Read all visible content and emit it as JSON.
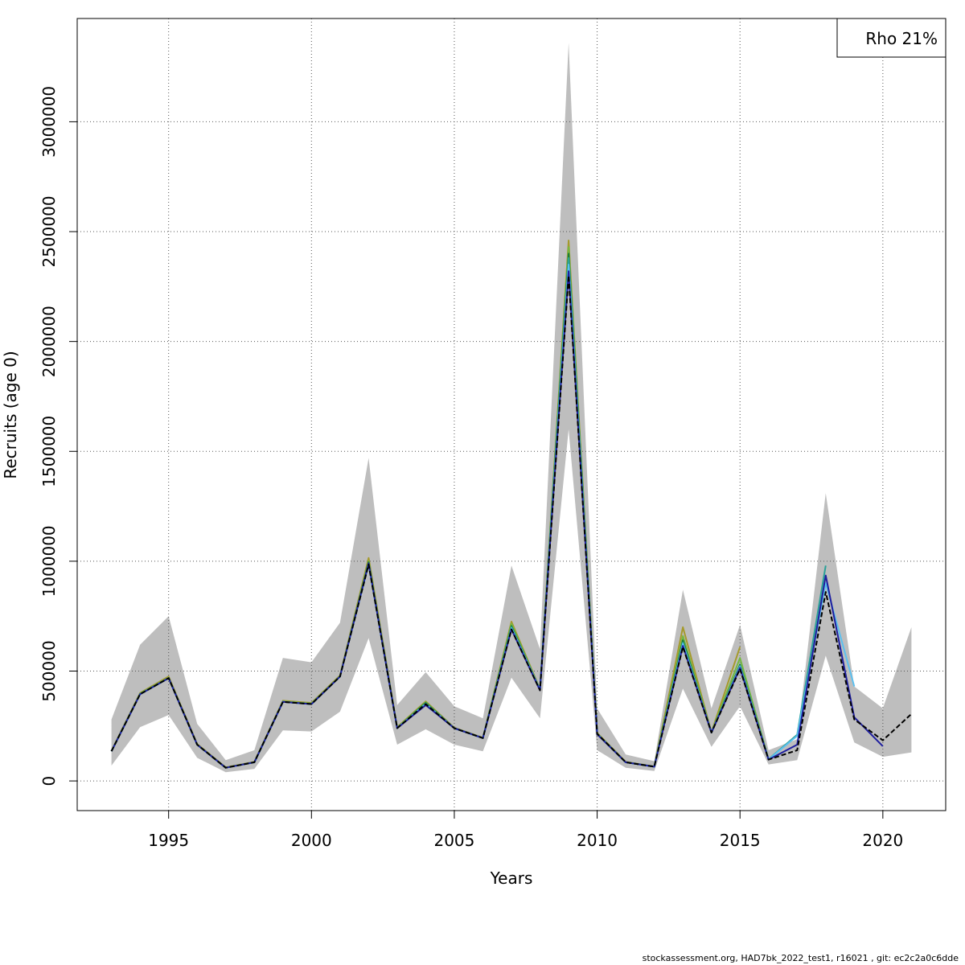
{
  "chart_data": {
    "type": "line",
    "title": "",
    "xlabel": "Years",
    "ylabel": "Recruits (age 0)",
    "xlim": [
      1991.8,
      2022.2
    ],
    "ylim": [
      -135000,
      3470000
    ],
    "x_ticks": [
      1995,
      2000,
      2005,
      2010,
      2015,
      2020
    ],
    "y_ticks": [
      0,
      500000,
      1000000,
      1500000,
      2000000,
      2500000,
      3000000
    ],
    "grid": true,
    "legend": {
      "placement": "top-right",
      "text": "Rho 21%"
    },
    "band": {
      "x": [
        1993,
        1994,
        1995,
        1996,
        1997,
        1998,
        1999,
        2000,
        2001,
        2002,
        2003,
        2004,
        2005,
        2006,
        2007,
        2008,
        2009,
        2010,
        2011,
        2012,
        2013,
        2014,
        2015,
        2016,
        2017,
        2018,
        2019,
        2020,
        2021
      ],
      "lower": [
        70000,
        245000,
        300000,
        105000,
        40000,
        55000,
        230000,
        225000,
        315000,
        650000,
        165000,
        235000,
        165000,
        135000,
        470000,
        285000,
        1600000,
        140000,
        60000,
        45000,
        420000,
        155000,
        340000,
        75000,
        95000,
        570000,
        175000,
        110000,
        130000
      ],
      "upper": [
        280000,
        620000,
        750000,
        260000,
        95000,
        140000,
        560000,
        540000,
        720000,
        1470000,
        345000,
        495000,
        340000,
        285000,
        980000,
        600000,
        3360000,
        330000,
        120000,
        90000,
        870000,
        330000,
        710000,
        140000,
        190000,
        1310000,
        430000,
        330000,
        700000
      ]
    },
    "series": [
      {
        "color": "#000000",
        "dashed": true,
        "x": [
          1993,
          1994,
          1995,
          1996,
          1997,
          1998,
          1999,
          2000,
          2001,
          2002,
          2003,
          2004,
          2005,
          2006,
          2007,
          2008,
          2009,
          2010,
          2011,
          2012,
          2013,
          2014,
          2015,
          2016,
          2017,
          2018,
          2019,
          2020,
          2021
        ],
        "values": [
          135000,
          395000,
          468000,
          165000,
          60000,
          85000,
          360000,
          350000,
          475000,
          985000,
          240000,
          350000,
          240000,
          195000,
          690000,
          412000,
          2300000,
          215000,
          85000,
          65000,
          610000,
          220000,
          510000,
          97000,
          140000,
          860000,
          280000,
          185000,
          305000
        ]
      },
      {
        "color": "#1f1f9f",
        "dashed": false,
        "x": [
          1993,
          1994,
          1995,
          1996,
          1997,
          1998,
          1999,
          2000,
          2001,
          2002,
          2003,
          2004,
          2005,
          2006,
          2007,
          2008,
          2009,
          2010,
          2011,
          2012,
          2013,
          2014,
          2015,
          2016,
          2017,
          2018,
          2019,
          2020
        ],
        "values": [
          135000,
          395000,
          468000,
          165000,
          60000,
          85000,
          360000,
          350000,
          475000,
          990000,
          240000,
          345000,
          240000,
          195000,
          690000,
          412000,
          2320000,
          212000,
          85000,
          65000,
          615000,
          220000,
          515000,
          97000,
          165000,
          935000,
          290000,
          158000
        ]
      },
      {
        "color": "#5bc0f0",
        "dashed": false,
        "x": [
          1993,
          1994,
          1995,
          1996,
          1997,
          1998,
          1999,
          2000,
          2001,
          2002,
          2003,
          2004,
          2005,
          2006,
          2007,
          2008,
          2009,
          2010,
          2011,
          2012,
          2013,
          2014,
          2015,
          2016,
          2017,
          2018,
          2019
        ],
        "values": [
          135000,
          395000,
          468000,
          165000,
          60000,
          85000,
          360000,
          350000,
          475000,
          985000,
          240000,
          350000,
          240000,
          195000,
          695000,
          415000,
          2350000,
          213000,
          85000,
          65000,
          625000,
          220000,
          520000,
          98000,
          205000,
          900000,
          430000
        ]
      },
      {
        "color": "#2aa198",
        "dashed": false,
        "x": [
          1993,
          1994,
          1995,
          1996,
          1997,
          1998,
          1999,
          2000,
          2001,
          2002,
          2003,
          2004,
          2005,
          2006,
          2007,
          2008,
          2009,
          2010,
          2011,
          2012,
          2013,
          2014,
          2015,
          2016,
          2017,
          2018
        ],
        "values": [
          135000,
          395000,
          468000,
          165000,
          60000,
          85000,
          360000,
          350000,
          475000,
          990000,
          240000,
          352000,
          240000,
          195000,
          700000,
          415000,
          2380000,
          215000,
          85000,
          65000,
          630000,
          220000,
          525000,
          98000,
          210000,
          980000
        ]
      },
      {
        "color": "#1b7a3a",
        "dashed": false,
        "x": [
          1993,
          1994,
          1995,
          1996,
          1997,
          1998,
          1999,
          2000,
          2001,
          2002,
          2003,
          2004,
          2005,
          2006,
          2007,
          2008,
          2009,
          2010,
          2011,
          2012,
          2013,
          2014,
          2015,
          2016,
          2017
        ],
        "values": [
          135000,
          395000,
          468000,
          165000,
          60000,
          85000,
          360000,
          350000,
          475000,
          995000,
          240000,
          355000,
          240000,
          195000,
          705000,
          415000,
          2400000,
          215000,
          85000,
          65000,
          640000,
          220000,
          530000,
          98000,
          210000
        ]
      },
      {
        "color": "#74b841",
        "dashed": false,
        "x": [
          1993,
          1994,
          1995,
          1996,
          1997,
          1998,
          1999,
          2000,
          2001,
          2002,
          2003,
          2004,
          2005,
          2006,
          2007,
          2008,
          2009,
          2010,
          2011,
          2012,
          2013,
          2014,
          2015,
          2016
        ],
        "values": [
          135000,
          398000,
          470000,
          165000,
          60000,
          85000,
          362000,
          352000,
          477000,
          1000000,
          242000,
          358000,
          240000,
          195000,
          715000,
          415000,
          2430000,
          215000,
          85000,
          65000,
          660000,
          220000,
          560000,
          100000
        ]
      },
      {
        "color": "#a59a2c",
        "dashed": false,
        "x": [
          1993,
          1994,
          1995,
          1996,
          1997,
          1998,
          1999,
          2000,
          2001,
          2002,
          2003,
          2004,
          2005,
          2006,
          2007,
          2008,
          2009,
          2010,
          2011,
          2012,
          2013,
          2014,
          2015
        ],
        "values": [
          138000,
          400000,
          475000,
          168000,
          62000,
          87000,
          365000,
          355000,
          480000,
          1015000,
          245000,
          362000,
          242000,
          197000,
          725000,
          418000,
          2460000,
          218000,
          87000,
          66000,
          700000,
          222000,
          610000
        ]
      }
    ]
  },
  "footer": "stockassessment.org, HAD7bk_2022_test1, r16021 , git: ec2c2a0c6dde"
}
